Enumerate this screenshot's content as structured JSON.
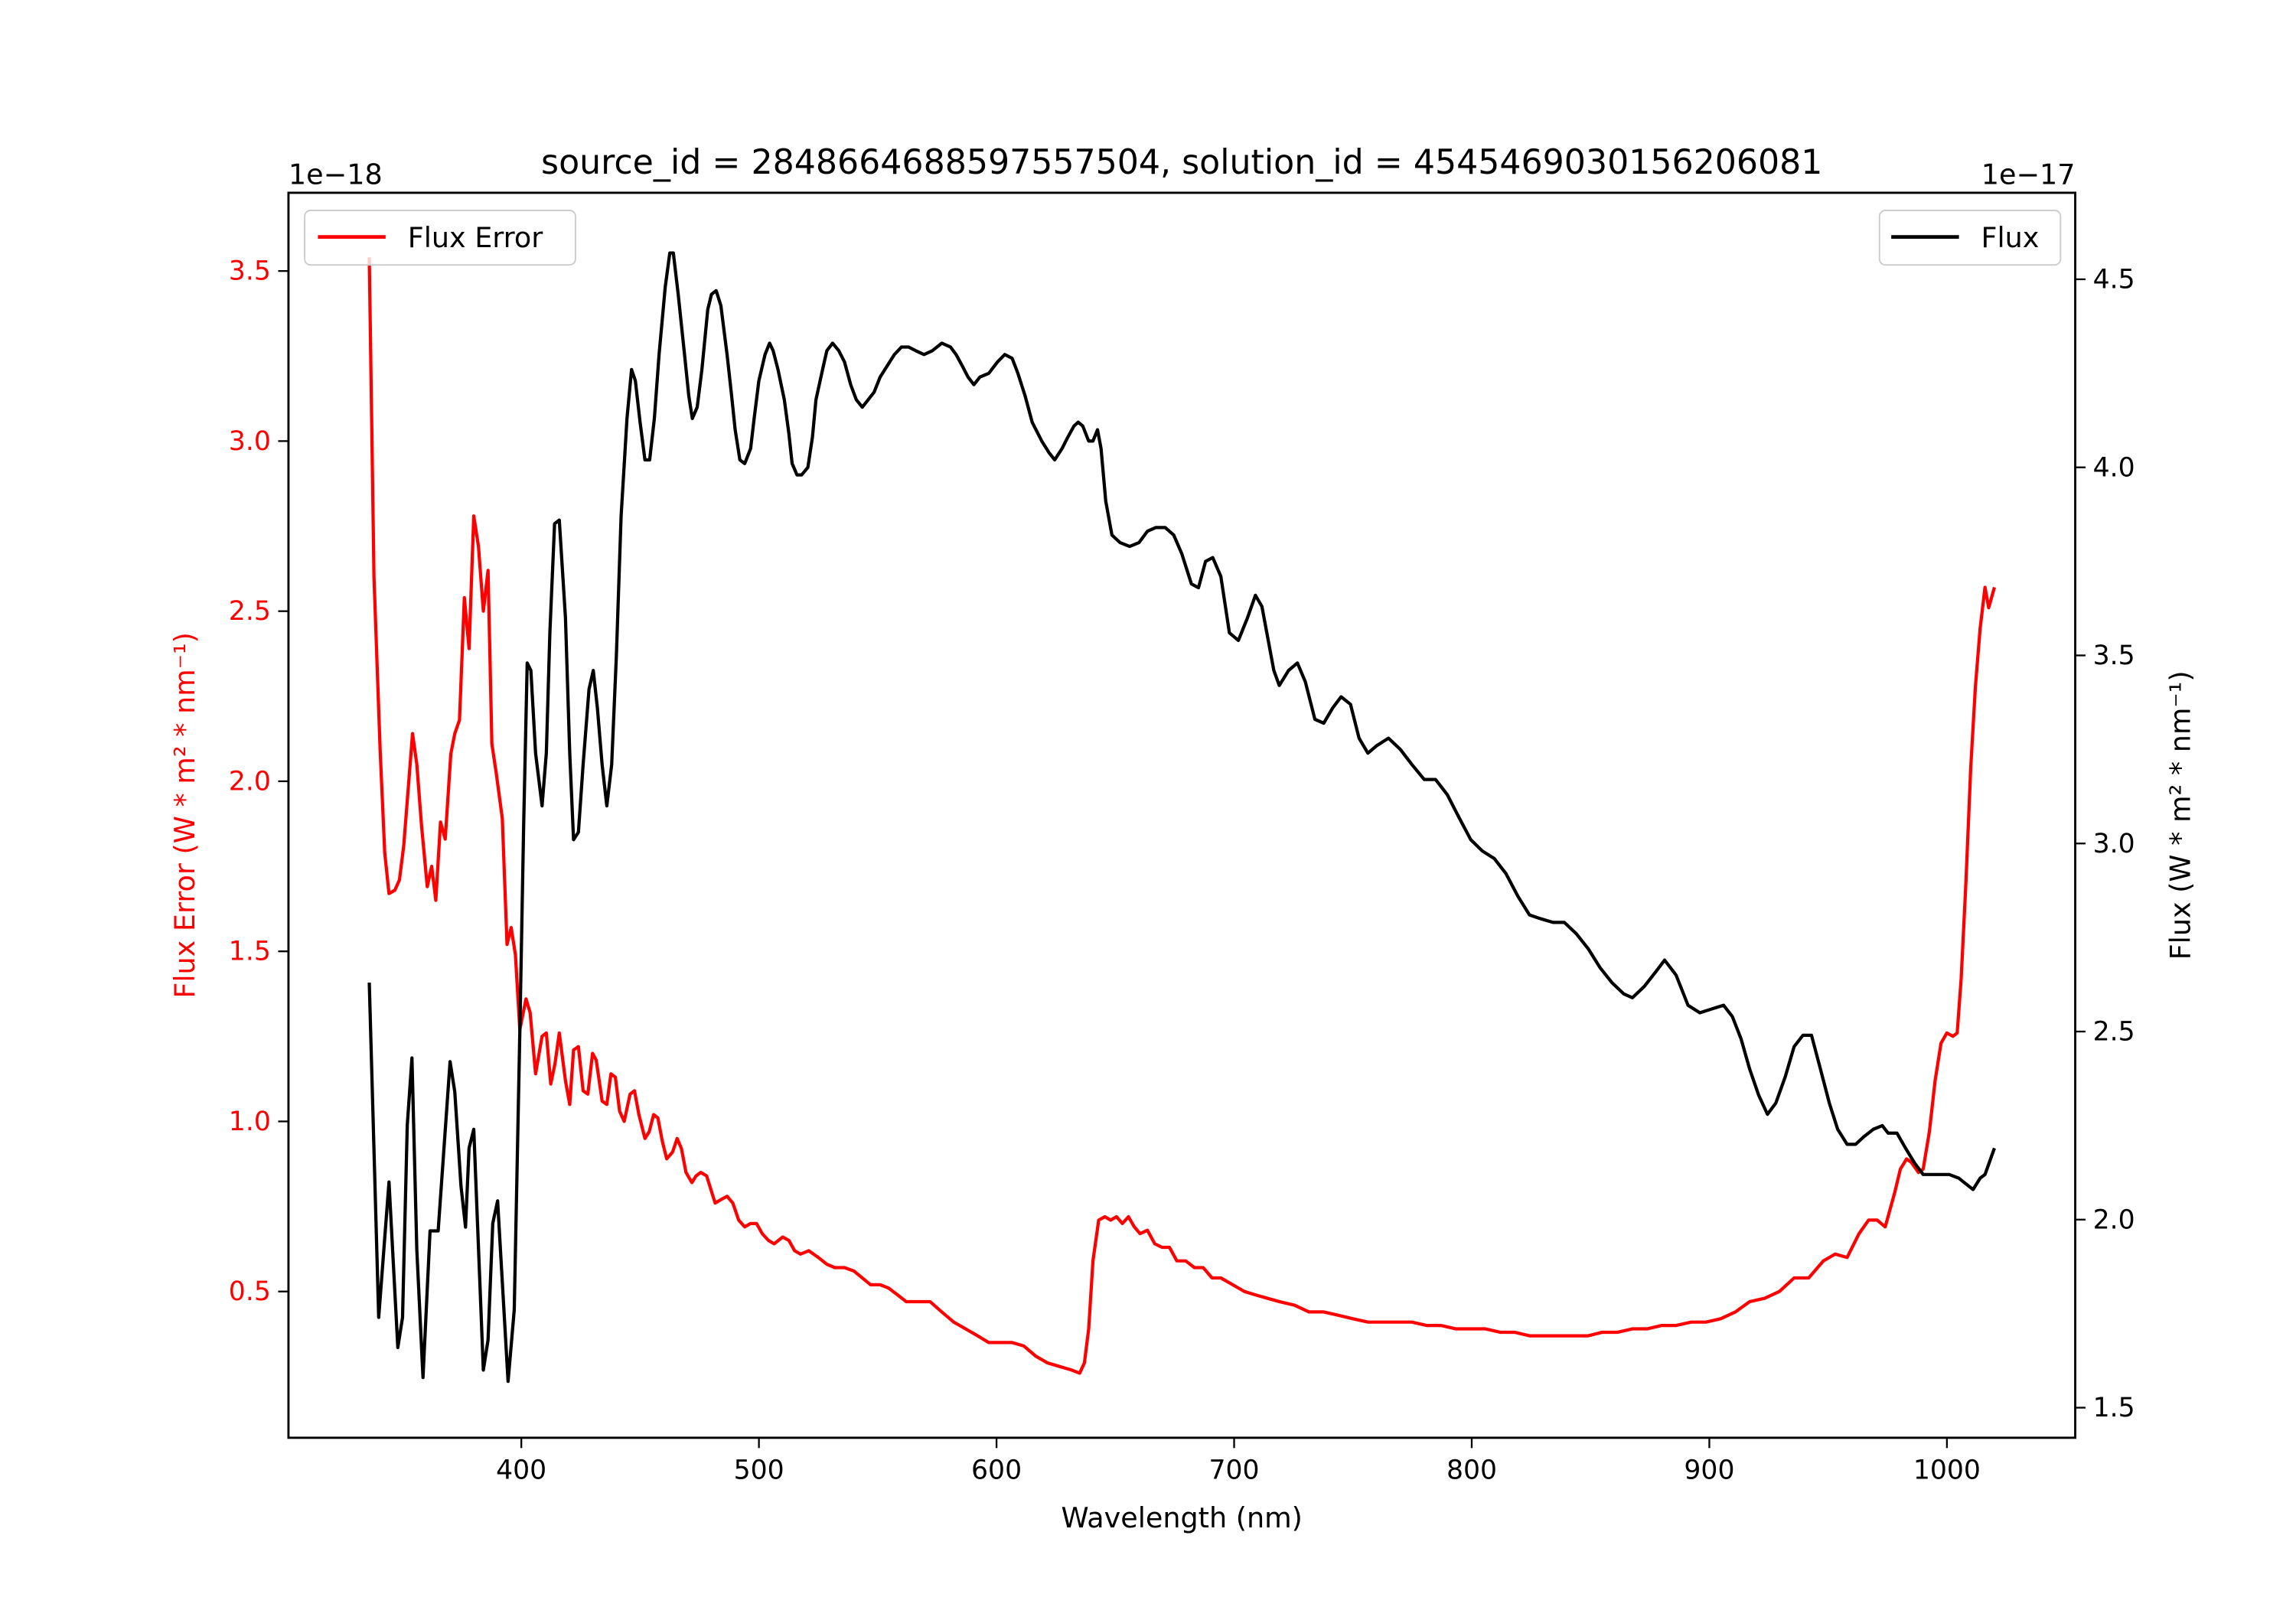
{
  "chart_data": {
    "type": "line",
    "title": "source_id = 2848664688597557504, solution_id = 4545469030156206081",
    "xlabel": "Wavelength (nm)",
    "xlim": [
      302,
      1054
    ],
    "xticks": [
      400,
      500,
      600,
      700,
      800,
      900,
      1000
    ],
    "left_axis": {
      "ylabel": "Flux Error (W * m² * nm⁻¹)",
      "offset_label": "1e−18",
      "ylim": [
        0.07,
        3.73
      ],
      "yticks": [
        "0.5",
        "1.0",
        "1.5",
        "2.0",
        "2.5",
        "3.0",
        "3.5"
      ],
      "color": "#ff0000"
    },
    "right_axis": {
      "ylabel": "Flux (W * m² * nm⁻¹)",
      "offset_label": "1e−17",
      "ylim": [
        1.42,
        4.73
      ],
      "yticks": [
        "1.5",
        "2.0",
        "2.5",
        "3.0",
        "3.5",
        "4.0",
        "4.5"
      ],
      "color": "#000000"
    },
    "legend": [
      {
        "label": "Flux Error",
        "color": "#ff0000",
        "placement": "upper-left"
      },
      {
        "label": "Flux",
        "color": "#000000",
        "placement": "upper-right"
      }
    ],
    "series": [
      {
        "name": "Flux Error",
        "axis": "left",
        "color": "#ff0000",
        "x": [
          336,
          338,
          340.6,
          342.5,
          344.3,
          346.8,
          348.7,
          350.5,
          353,
          354.2,
          356,
          358,
          360.4,
          362.3,
          364,
          366,
          368,
          370.3,
          372,
          374,
          376,
          378,
          380,
          382,
          384,
          386,
          387.6,
          389.5,
          392,
          394,
          395.7,
          397.5,
          399.4,
          402,
          403.7,
          406,
          408.7,
          410.5,
          412.4,
          414.2,
          416,
          418.6,
          420.4,
          422,
          424,
          426,
          428,
          430,
          431.5,
          434,
          436,
          437.7,
          439.6,
          441.4,
          443.3,
          445.8,
          447.6,
          449.5,
          452,
          453.8,
          455.7,
          457.5,
          459.4,
          461.2,
          463.7,
          465.6,
          467.4,
          469.3,
          471.8,
          473.6,
          475.5,
          478,
          479.8,
          481.6,
          484,
          486.6,
          489,
          491.5,
          494,
          496.5,
          499,
          501.4,
          504,
          506.4,
          510,
          512.6,
          515,
          517.5,
          521,
          525,
          528.6,
          532,
          536,
          540,
          543.5,
          547,
          551,
          554.6,
          558.3,
          562,
          567,
          572,
          577,
          582,
          587,
          592,
          596.7,
          601.6,
          606.6,
          611.5,
          616.5,
          621.4,
          626.4,
          631.3,
          635,
          637,
          638.8,
          640.6,
          643,
          645.6,
          648,
          650.5,
          653,
          655.5,
          658,
          660.4,
          663.5,
          666.6,
          669.7,
          672.8,
          675.9,
          679.6,
          683.3,
          687,
          690.7,
          694.4,
          699.4,
          704.3,
          709,
          714,
          719,
          725.4,
          731.5,
          737.7,
          743.9,
          750,
          756.3,
          762.5,
          768.6,
          774.8,
          781,
          787,
          793.4,
          799.6,
          805.8,
          812,
          818,
          824.3,
          830.5,
          836.7,
          842.9,
          849,
          855,
          861.4,
          867.6,
          873.8,
          880,
          886,
          892.4,
          898.6,
          904.8,
          911,
          917,
          923.3,
          929.5,
          935.7,
          941.8,
          948,
          953,
          958,
          963,
          967,
          970.6,
          974,
          978,
          980.4,
          983,
          985,
          988,
          990,
          992.6,
          995,
          997.5,
          1000,
          1002.5,
          1004.3,
          1006,
          1008,
          1010,
          1012,
          1014,
          1016,
          1017.6,
          1020
        ],
        "y": [
          3.54,
          2.6,
          2.09,
          1.79,
          1.67,
          1.68,
          1.71,
          1.81,
          2.03,
          2.14,
          2.05,
          1.87,
          1.69,
          1.75,
          1.65,
          1.88,
          1.83,
          2.08,
          2.14,
          2.18,
          2.54,
          2.39,
          2.78,
          2.69,
          2.5,
          2.62,
          2.11,
          2.02,
          1.89,
          1.52,
          1.57,
          1.49,
          1.27,
          1.36,
          1.32,
          1.14,
          1.25,
          1.26,
          1.11,
          1.17,
          1.26,
          1.12,
          1.05,
          1.21,
          1.22,
          1.09,
          1.08,
          1.2,
          1.18,
          1.06,
          1.05,
          1.14,
          1.13,
          1.03,
          1.0,
          1.08,
          1.09,
          1.02,
          0.95,
          0.97,
          1.02,
          1.01,
          0.94,
          0.89,
          0.91,
          0.95,
          0.92,
          0.85,
          0.82,
          0.84,
          0.85,
          0.84,
          0.8,
          0.76,
          0.77,
          0.78,
          0.76,
          0.71,
          0.69,
          0.7,
          0.7,
          0.67,
          0.65,
          0.64,
          0.66,
          0.65,
          0.62,
          0.61,
          0.62,
          0.6,
          0.58,
          0.57,
          0.57,
          0.56,
          0.54,
          0.52,
          0.52,
          0.51,
          0.49,
          0.47,
          0.47,
          0.47,
          0.44,
          0.41,
          0.39,
          0.37,
          0.35,
          0.35,
          0.35,
          0.34,
          0.31,
          0.29,
          0.28,
          0.27,
          0.26,
          0.29,
          0.39,
          0.59,
          0.71,
          0.72,
          0.71,
          0.72,
          0.7,
          0.72,
          0.69,
          0.67,
          0.68,
          0.64,
          0.63,
          0.63,
          0.59,
          0.59,
          0.57,
          0.57,
          0.54,
          0.54,
          0.52,
          0.5,
          0.49,
          0.48,
          0.47,
          0.46,
          0.44,
          0.44,
          0.43,
          0.42,
          0.41,
          0.41,
          0.41,
          0.41,
          0.4,
          0.4,
          0.39,
          0.39,
          0.39,
          0.38,
          0.38,
          0.37,
          0.37,
          0.37,
          0.37,
          0.37,
          0.38,
          0.38,
          0.39,
          0.39,
          0.4,
          0.4,
          0.41,
          0.41,
          0.42,
          0.44,
          0.47,
          0.48,
          0.5,
          0.54,
          0.54,
          0.59,
          0.61,
          0.6,
          0.67,
          0.71,
          0.71,
          0.69,
          0.79,
          0.86,
          0.89,
          0.88,
          0.85,
          0.86,
          0.97,
          1.12,
          1.23,
          1.26,
          1.25,
          1.26,
          1.42,
          1.7,
          2.04,
          2.28,
          2.45,
          2.57,
          2.51,
          2.57
        ]
      },
      {
        "name": "Flux",
        "axis": "right",
        "color": "#000000",
        "x": [
          336,
          340,
          344.3,
          348,
          350,
          352,
          354,
          356,
          358.6,
          361.6,
          365,
          370,
          372,
          374.6,
          376.5,
          378,
          380,
          384,
          386,
          388,
          390,
          394.4,
          397,
          399.4,
          401,
          402.5,
          404,
          406,
          408.7,
          410.5,
          412,
          414,
          416,
          418.6,
          420.4,
          422,
          424,
          426,
          428.5,
          430.3,
          432,
          434,
          436,
          438,
          440,
          442,
          444.5,
          446.4,
          448,
          450,
          452,
          454,
          456,
          458,
          460.6,
          462.5,
          464,
          466,
          468.7,
          470.5,
          472,
          474,
          476,
          478.5,
          480,
          482,
          484,
          486.6,
          488.5,
          490,
          492,
          494,
          496.5,
          498,
          500,
          502.6,
          504.5,
          506,
          508,
          510.7,
          512.6,
          514,
          516,
          518,
          520.6,
          522.5,
          524,
          526.8,
          528.6,
          531,
          533.6,
          536,
          538.6,
          541,
          543.5,
          546,
          548.5,
          551,
          554,
          557,
          560,
          563,
          566,
          569.5,
          573,
          577,
          580.6,
          583,
          585.6,
          588,
          590.5,
          593,
          596.7,
          600.4,
          603.5,
          606.6,
          609,
          612,
          615,
          619,
          622,
          624.5,
          627.6,
          630,
          632.6,
          634.4,
          636.3,
          638.8,
          640.6,
          642.5,
          644,
          646,
          648.6,
          652,
          656,
          660,
          663.5,
          667,
          671,
          674.6,
          678,
          682,
          685,
          688,
          691,
          694.4,
          698,
          701.8,
          705.6,
          709,
          711.7,
          716.7,
          719,
          722.9,
          726.6,
          730,
          734,
          737.7,
          741.4,
          745,
          749,
          752.6,
          756.3,
          760,
          765,
          770,
          774.8,
          780,
          784.8,
          789.7,
          794.6,
          799.6,
          804.5,
          809.5,
          814.4,
          819.4,
          824.3,
          829,
          834.2,
          839,
          844,
          849,
          854,
          859,
          864,
          867.6,
          872.6,
          877.6,
          881.2,
          886,
          891,
          896,
          901,
          906,
          909.7,
          913.4,
          917,
          920.8,
          924.5,
          928,
          932,
          935.7,
          939.4,
          943,
          946.8,
          950.5,
          954,
          958,
          961.6,
          965,
          969,
          972.8,
          975.3,
          979,
          982.6,
          986.4,
          990,
          994,
          997.5,
          1001,
          1005,
          1009,
          1011,
          1014,
          1016,
          1020
        ],
        "y": [
          2.63,
          1.74,
          2.1,
          1.66,
          1.74,
          2.25,
          2.43,
          1.92,
          1.58,
          1.97,
          1.97,
          2.42,
          2.34,
          2.09,
          1.98,
          2.19,
          2.24,
          1.6,
          1.68,
          1.99,
          2.05,
          1.57,
          1.76,
          2.5,
          3.05,
          3.48,
          3.46,
          3.24,
          3.1,
          3.24,
          3.56,
          3.85,
          3.86,
          3.6,
          3.24,
          3.01,
          3.03,
          3.21,
          3.41,
          3.46,
          3.36,
          3.21,
          3.1,
          3.21,
          3.5,
          3.87,
          4.13,
          4.26,
          4.23,
          4.12,
          4.02,
          4.02,
          4.13,
          4.3,
          4.48,
          4.57,
          4.57,
          4.46,
          4.3,
          4.19,
          4.13,
          4.16,
          4.26,
          4.42,
          4.46,
          4.47,
          4.43,
          4.3,
          4.19,
          4.1,
          4.02,
          4.01,
          4.05,
          4.13,
          4.23,
          4.3,
          4.33,
          4.31,
          4.26,
          4.18,
          4.09,
          4.01,
          3.98,
          3.98,
          4.0,
          4.08,
          4.18,
          4.26,
          4.31,
          4.33,
          4.31,
          4.28,
          4.22,
          4.18,
          4.16,
          4.18,
          4.2,
          4.24,
          4.27,
          4.3,
          4.32,
          4.32,
          4.31,
          4.3,
          4.31,
          4.33,
          4.32,
          4.3,
          4.27,
          4.24,
          4.22,
          4.24,
          4.25,
          4.28,
          4.3,
          4.29,
          4.25,
          4.19,
          4.12,
          4.07,
          4.04,
          4.02,
          4.05,
          4.08,
          4.11,
          4.12,
          4.11,
          4.07,
          4.07,
          4.1,
          4.05,
          3.91,
          3.82,
          3.8,
          3.79,
          3.8,
          3.83,
          3.84,
          3.84,
          3.82,
          3.77,
          3.69,
          3.68,
          3.75,
          3.76,
          3.71,
          3.56,
          3.54,
          3.6,
          3.66,
          3.63,
          3.46,
          3.42,
          3.46,
          3.48,
          3.43,
          3.33,
          3.32,
          3.36,
          3.39,
          3.37,
          3.28,
          3.24,
          3.26,
          3.28,
          3.25,
          3.21,
          3.17,
          3.17,
          3.13,
          3.07,
          3.01,
          2.98,
          2.96,
          2.92,
          2.86,
          2.81,
          2.8,
          2.79,
          2.79,
          2.76,
          2.72,
          2.67,
          2.63,
          2.6,
          2.59,
          2.62,
          2.66,
          2.69,
          2.65,
          2.57,
          2.55,
          2.56,
          2.57,
          2.54,
          2.48,
          2.4,
          2.33,
          2.28,
          2.31,
          2.38,
          2.46,
          2.49,
          2.49,
          2.4,
          2.31,
          2.24,
          2.2,
          2.2,
          2.22,
          2.24,
          2.25,
          2.23,
          2.23,
          2.19,
          2.15,
          2.12,
          2.12,
          2.12,
          2.12,
          2.11,
          2.09,
          2.08,
          2.11,
          2.12,
          2.19
        ]
      }
    ]
  }
}
